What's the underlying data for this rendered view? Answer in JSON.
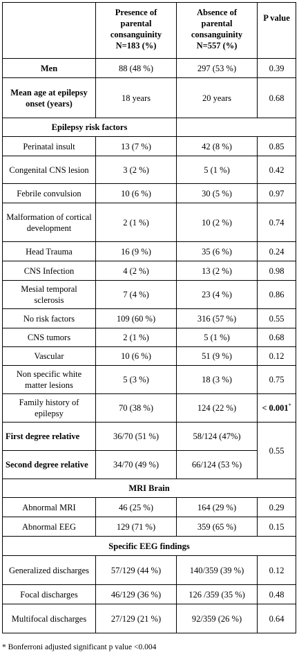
{
  "header": {
    "col1": "",
    "col2_line1": "Presence of",
    "col2_line2": "parental",
    "col2_line3": "consanguinity",
    "col2_line4": "N=183 (%)",
    "col3_line1": "Absence of",
    "col3_line2": "parental",
    "col3_line3": "consanguinity",
    "col3_line4": "N=557 (%)",
    "col4": "P value"
  },
  "rows": {
    "men": {
      "label": "Men",
      "yes": "88 (48 %)",
      "no": "297 (53 %)",
      "p": "0.39"
    },
    "onset": {
      "label": "Mean age at epilepsy onset (years)",
      "yes": "18 years",
      "no": "20 years",
      "p": "0.68"
    },
    "sec_risk": "Epilepsy risk factors",
    "perinatal": {
      "label": "Perinatal insult",
      "yes": "13 (7 %)",
      "no": "42 (8 %)",
      "p": "0.85"
    },
    "congenital": {
      "label": "Congenital CNS lesion",
      "yes": "3 (2 %)",
      "no": "5 (1 %)",
      "p": "0.42"
    },
    "febrile": {
      "label": "Febrile convulsion",
      "yes": "10 (6 %)",
      "no": "30 (5 %)",
      "p": "0.97"
    },
    "malformation": {
      "label": "Malformation of cortical development",
      "yes": "2 (1 %)",
      "no": "10 (2 %)",
      "p": "0.74"
    },
    "trauma": {
      "label": "Head Trauma",
      "yes": "16 (9 %)",
      "no": "35 (6 %)",
      "p": "0.24"
    },
    "infection": {
      "label": "CNS Infection",
      "yes": "4 (2 %)",
      "no": "13 (2 %)",
      "p": "0.98"
    },
    "mesial": {
      "label": "Mesial temporal sclerosis",
      "yes": "7 (4 %)",
      "no": "23 (4 %)",
      "p": "0.86"
    },
    "norisk": {
      "label": "No risk factors",
      "yes": "109 (60 %)",
      "no": "316 (57 %)",
      "p": "0.55"
    },
    "tumors": {
      "label": "CNS tumors",
      "yes": "2 (1 %)",
      "no": "5 (1 %)",
      "p": "0.68"
    },
    "vascular": {
      "label": "Vascular",
      "yes": "10 (6 %)",
      "no": "51 (9 %)",
      "p": "0.12"
    },
    "white": {
      "label": "Non specific white matter lesions",
      "yes": "5 (3 %)",
      "no": "18 (3 %)",
      "p": "0.75"
    },
    "family": {
      "label": "Family history of epilepsy",
      "yes": "70 (38 %)",
      "no": "124 (22 %)",
      "p": "< 0.001",
      "p_mark": "*"
    },
    "first": {
      "label": "First degree relative",
      "yes": "36/70 (51 %)",
      "no": "58/124 (47%)"
    },
    "second": {
      "label": "Second degree relative",
      "yes": "34/70 (49 %)",
      "no": "66/124 (53 %)"
    },
    "degree_p": "0.55",
    "sec_mri": "MRI Brain",
    "mri": {
      "label": "Abnormal MRI",
      "yes": "46 (25 %)",
      "no": "164 (29 %)",
      "p": "0.29"
    },
    "eeg": {
      "label": "Abnormal EEG",
      "yes": "129 (71 %)",
      "no": "359 (65 %)",
      "p": "0.15"
    },
    "sec_eeg": "Specific EEG findings",
    "generalized": {
      "label": "Generalized discharges",
      "yes": "57/129 (44 %)",
      "no": "140/359 (39 %)",
      "p": "0.12"
    },
    "focal": {
      "label": "Focal discharges",
      "yes": "46/129 (36 %)",
      "no": "126 /359 (35 %)",
      "p": "0.48"
    },
    "multifocal": {
      "label": "Multifocal discharges",
      "yes": "27/129 (21 %)",
      "no": "92/359 (26 %)",
      "p": "0.64"
    }
  },
  "footnote": "* Bonferroni adjusted significant p value <0.004"
}
